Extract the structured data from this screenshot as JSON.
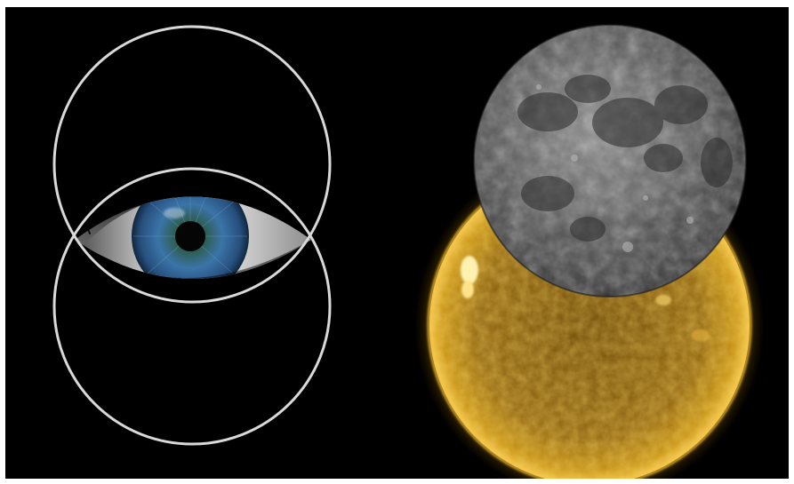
{
  "scene": {
    "background_color": "#000000",
    "border_color": "#ffffff",
    "left_panel": {
      "subject": "eye-icon",
      "vesica_piscis": {
        "ring_color": "#d9d9d9",
        "iris_color": "#3d6e9c",
        "sclera_color": "#d8d8d8"
      }
    },
    "right_panel": {
      "subject": "eclipse-icon",
      "moon_color": "#5a5a5a",
      "sun_color": "#c8940e",
      "corona_color": "#f0b820"
    }
  }
}
